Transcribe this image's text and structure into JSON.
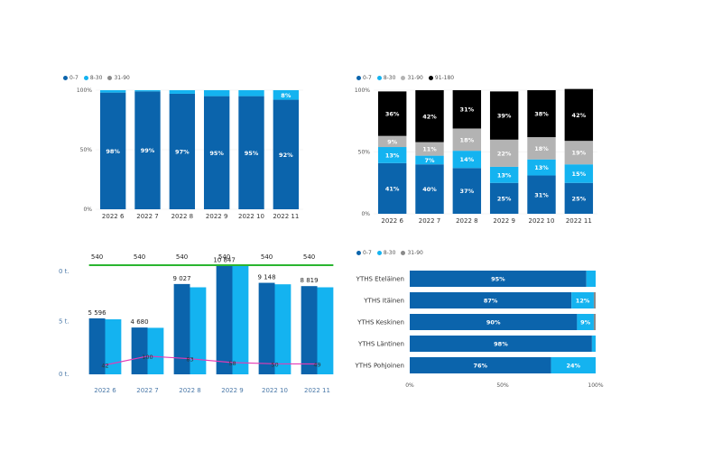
{
  "colors": {
    "dark_blue": "#0b64ac",
    "light_blue": "#14b3f0",
    "gray": "#b3b3b3",
    "black": "#000000",
    "green": "#2ab530",
    "pink": "#e53ab4",
    "axis_text": "#555555",
    "blue_axis_text": "#4a78a8"
  },
  "chart_data": [
    {
      "type": "bar",
      "stacked": "100%",
      "legend": [
        "0-7",
        "8-30",
        "31-90"
      ],
      "legend_colors": [
        "#0b64ac",
        "#14b3f0",
        "#8a8a8a"
      ],
      "categories": [
        "2022 6",
        "2022 7",
        "2022 8",
        "2022 9",
        "2022 10",
        "2022 11"
      ],
      "series": [
        {
          "name": "0-7",
          "values": [
            98,
            99,
            97,
            95,
            95,
            92
          ],
          "labels": [
            "98%",
            "99%",
            "97%",
            "95%",
            "95%",
            "92%"
          ]
        },
        {
          "name": "8-30",
          "values": [
            2,
            1,
            3,
            5,
            5,
            8
          ],
          "labels": [
            "",
            "",
            "",
            "",
            "",
            "8%"
          ]
        },
        {
          "name": "31-90",
          "values": [
            0,
            0,
            0,
            0,
            0,
            0
          ],
          "labels": [
            "",
            "",
            "",
            "",
            "",
            ""
          ]
        }
      ],
      "yticks": [
        "100%",
        "50%",
        "0%"
      ]
    },
    {
      "type": "bar",
      "stacked": "100%",
      "legend": [
        "0-7",
        "8-30",
        "31-90",
        "91-180"
      ],
      "legend_colors": [
        "#0b64ac",
        "#14b3f0",
        "#b3b3b3",
        "#000000"
      ],
      "categories": [
        "2022 6",
        "2022 7",
        "2022 8",
        "2022 9",
        "2022 10",
        "2022 11"
      ],
      "series": [
        {
          "name": "0-7",
          "values": [
            41,
            40,
            37,
            25,
            31,
            25
          ],
          "labels": [
            "41%",
            "40%",
            "37%",
            "25%",
            "31%",
            "25%"
          ]
        },
        {
          "name": "8-30",
          "values": [
            13,
            7,
            14,
            13,
            13,
            15
          ],
          "labels": [
            "13%",
            "7%",
            "14%",
            "13%",
            "13%",
            "15%"
          ]
        },
        {
          "name": "31-90",
          "values": [
            9,
            11,
            18,
            22,
            18,
            19
          ],
          "labels": [
            "9%",
            "11%",
            "18%",
            "22%",
            "18%",
            "19%"
          ]
        },
        {
          "name": "91-180",
          "values": [
            36,
            42,
            31,
            39,
            38,
            42
          ],
          "labels": [
            "36%",
            "42%",
            "31%",
            "39%",
            "38%",
            "42%"
          ]
        }
      ],
      "yticks": [
        "100%",
        "50%",
        "0%"
      ]
    },
    {
      "type": "bar",
      "clustered_with_lines": true,
      "categories": [
        "2022 6",
        "2022 7",
        "2022 8",
        "2022 9",
        "2022 10",
        "2022 11"
      ],
      "series": [
        {
          "name": "series-1",
          "values": [
            5596,
            4680,
            9027,
            10847,
            9148,
            8819
          ],
          "labels": [
            "5 596",
            "4 680",
            "9 027",
            "10 847",
            "9 148",
            "8 819"
          ]
        },
        {
          "name": "series-2",
          "values": [
            5500,
            4650,
            8700,
            10847,
            9000,
            8700
          ]
        }
      ],
      "line_top": {
        "values": [
          540,
          540,
          540,
          540,
          540,
          540
        ],
        "labels": [
          "540",
          "540",
          "540",
          "540",
          "540",
          "540"
        ]
      },
      "line_pink": {
        "values": [
          42,
          100,
          83,
          58,
          50,
          49
        ],
        "labels": [
          "42",
          "100",
          "83",
          "58",
          "50",
          "49"
        ]
      },
      "yticks": [
        "0 t.",
        "5 t.",
        "0 t."
      ],
      "ylim": [
        0,
        11000
      ]
    },
    {
      "type": "bar",
      "orientation": "horizontal",
      "stacked": "100%",
      "legend": [
        "0-7",
        "8-30",
        "31-90"
      ],
      "legend_colors": [
        "#0b64ac",
        "#14b3f0",
        "#8a8a8a"
      ],
      "categories": [
        "YTHS Eteläinen",
        "YTHS Itäinen",
        "YTHS Keskinen",
        "YTHS Läntinen",
        "YTHS Pohjoinen"
      ],
      "series": [
        {
          "name": "0-7",
          "values": [
            95,
            87,
            90,
            98,
            76
          ],
          "labels": [
            "95%",
            "87%",
            "90%",
            "98%",
            "76%"
          ]
        },
        {
          "name": "8-30",
          "values": [
            5,
            12,
            9,
            2,
            24
          ],
          "labels": [
            "",
            "12%",
            "9%",
            "",
            "24%"
          ]
        },
        {
          "name": "31-90",
          "values": [
            0,
            1,
            1,
            0,
            0
          ],
          "labels": [
            "",
            "",
            "",
            "",
            ""
          ]
        }
      ],
      "xticks": [
        "0%",
        "50%",
        "100%"
      ]
    }
  ]
}
